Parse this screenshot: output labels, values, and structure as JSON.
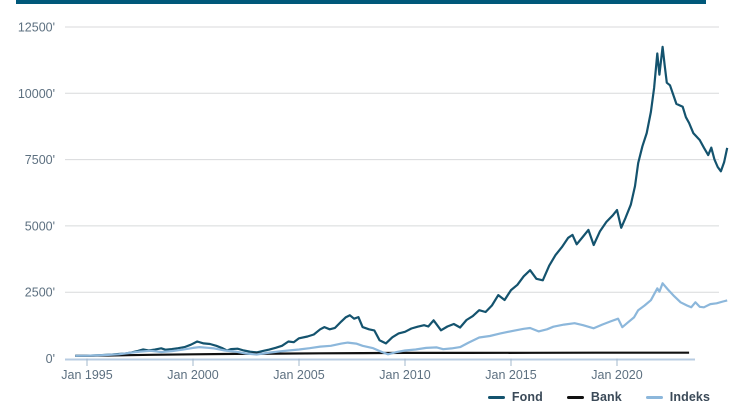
{
  "page": {
    "accent_bar_color": "#00587a",
    "background_color": "#ffffff"
  },
  "chart_data": {
    "type": "line",
    "title": "",
    "xlabel": "",
    "ylabel": "",
    "grid": true,
    "legend_position": "bottom-right",
    "y_tick_suffix": "'",
    "x_axis": {
      "tick_labels": [
        "Jan 1995",
        "Jan 2000",
        "Jan 2005",
        "Jan 2010",
        "Jan 2015",
        "Jan 2020"
      ],
      "tick_years": [
        1995,
        2000,
        2005,
        2010,
        2015,
        2020
      ],
      "range_years": [
        1994.4,
        2025.3
      ]
    },
    "y_axis": {
      "tick_labels": [
        "0'",
        "2500'",
        "5000'",
        "7500'",
        "10000'",
        "12500'"
      ],
      "tick_values": [
        0,
        2500,
        5000,
        7500,
        10000,
        12500
      ],
      "range": [
        0,
        12500
      ]
    },
    "style": {
      "grid_color": "#d8dadb",
      "axis_line_color": "#b8cce2",
      "tick_color": "#a3b8cc",
      "axis_label_color": "#5d7080",
      "legend_text_color": "#3b4a58"
    },
    "series": [
      {
        "name": "Fond",
        "color": "#14536e",
        "end_year": 2025.2,
        "points": [
          [
            1994.45,
            100
          ],
          [
            1994.7,
            100
          ],
          [
            1995.0,
            105
          ],
          [
            1995.3,
            112
          ],
          [
            1995.6,
            125
          ],
          [
            1995.9,
            138
          ],
          [
            1996.2,
            150
          ],
          [
            1996.5,
            168
          ],
          [
            1996.8,
            185
          ],
          [
            1997.1,
            230
          ],
          [
            1997.4,
            285
          ],
          [
            1997.65,
            340
          ],
          [
            1997.9,
            300
          ],
          [
            1998.2,
            335
          ],
          [
            1998.5,
            385
          ],
          [
            1998.7,
            330
          ],
          [
            1999.0,
            355
          ],
          [
            1999.3,
            390
          ],
          [
            1999.6,
            430
          ],
          [
            1999.9,
            520
          ],
          [
            2000.2,
            640
          ],
          [
            2000.5,
            570
          ],
          [
            2000.8,
            545
          ],
          [
            2001.1,
            480
          ],
          [
            2001.4,
            385
          ],
          [
            2001.6,
            300
          ],
          [
            2001.8,
            355
          ],
          [
            2002.1,
            370
          ],
          [
            2002.4,
            300
          ],
          [
            2002.7,
            255
          ],
          [
            2003.0,
            230
          ],
          [
            2003.3,
            285
          ],
          [
            2003.6,
            335
          ],
          [
            2003.9,
            405
          ],
          [
            2004.2,
            480
          ],
          [
            2004.5,
            640
          ],
          [
            2004.75,
            615
          ],
          [
            2005.0,
            760
          ],
          [
            2005.4,
            830
          ],
          [
            2005.7,
            905
          ],
          [
            2006.0,
            1100
          ],
          [
            2006.2,
            1185
          ],
          [
            2006.45,
            1100
          ],
          [
            2006.7,
            1155
          ],
          [
            2007.0,
            1400
          ],
          [
            2007.2,
            1550
          ],
          [
            2007.4,
            1630
          ],
          [
            2007.6,
            1500
          ],
          [
            2007.8,
            1560
          ],
          [
            2008.0,
            1185
          ],
          [
            2008.3,
            1100
          ],
          [
            2008.55,
            1060
          ],
          [
            2008.8,
            685
          ],
          [
            2009.1,
            570
          ],
          [
            2009.4,
            800
          ],
          [
            2009.7,
            945
          ],
          [
            2010.0,
            1005
          ],
          [
            2010.3,
            1130
          ],
          [
            2010.6,
            1200
          ],
          [
            2010.9,
            1255
          ],
          [
            2011.1,
            1205
          ],
          [
            2011.35,
            1440
          ],
          [
            2011.7,
            1065
          ],
          [
            2012.0,
            1205
          ],
          [
            2012.3,
            1300
          ],
          [
            2012.6,
            1170
          ],
          [
            2012.9,
            1450
          ],
          [
            2013.2,
            1600
          ],
          [
            2013.5,
            1820
          ],
          [
            2013.8,
            1755
          ],
          [
            2014.1,
            2000
          ],
          [
            2014.4,
            2390
          ],
          [
            2014.7,
            2205
          ],
          [
            2015.0,
            2580
          ],
          [
            2015.3,
            2780
          ],
          [
            2015.6,
            3100
          ],
          [
            2015.9,
            3330
          ],
          [
            2016.2,
            3005
          ],
          [
            2016.5,
            2950
          ],
          [
            2016.8,
            3500
          ],
          [
            2017.1,
            3900
          ],
          [
            2017.4,
            4200
          ],
          [
            2017.7,
            4550
          ],
          [
            2017.9,
            4660
          ],
          [
            2018.1,
            4305
          ],
          [
            2018.4,
            4600
          ],
          [
            2018.65,
            4850
          ],
          [
            2018.9,
            4280
          ],
          [
            2019.2,
            4800
          ],
          [
            2019.5,
            5150
          ],
          [
            2019.8,
            5400
          ],
          [
            2020.0,
            5600
          ],
          [
            2020.2,
            4930
          ],
          [
            2020.4,
            5300
          ],
          [
            2020.65,
            5800
          ],
          [
            2020.85,
            6500
          ],
          [
            2021.0,
            7370
          ],
          [
            2021.2,
            8000
          ],
          [
            2021.4,
            8500
          ],
          [
            2021.6,
            9300
          ],
          [
            2021.75,
            10200
          ],
          [
            2021.9,
            11500
          ],
          [
            2022.0,
            10700
          ],
          [
            2022.15,
            11750
          ],
          [
            2022.25,
            11050
          ],
          [
            2022.35,
            10400
          ],
          [
            2022.5,
            10300
          ],
          [
            2022.65,
            9950
          ],
          [
            2022.8,
            9600
          ],
          [
            2023.1,
            9490
          ],
          [
            2023.25,
            9100
          ],
          [
            2023.4,
            8880
          ],
          [
            2023.6,
            8500
          ],
          [
            2023.9,
            8240
          ],
          [
            2024.1,
            7950
          ],
          [
            2024.3,
            7670
          ],
          [
            2024.45,
            7950
          ],
          [
            2024.6,
            7500
          ],
          [
            2024.75,
            7220
          ],
          [
            2024.9,
            7060
          ],
          [
            2025.05,
            7400
          ],
          [
            2025.2,
            7940
          ]
        ]
      },
      {
        "name": "Bank",
        "color": "#111111",
        "end_year": 2023.4,
        "points": [
          [
            1994.45,
            100
          ],
          [
            1996.0,
            115
          ],
          [
            1998.0,
            140
          ],
          [
            2000.0,
            160
          ],
          [
            2002.0,
            175
          ],
          [
            2004.0,
            185
          ],
          [
            2006.0,
            195
          ],
          [
            2008.0,
            205
          ],
          [
            2010.0,
            210
          ],
          [
            2013.0,
            213
          ],
          [
            2016.0,
            215
          ],
          [
            2019.0,
            217
          ],
          [
            2021.0,
            218
          ],
          [
            2023.4,
            220
          ]
        ]
      },
      {
        "name": "Indeks",
        "color": "#8cb7db",
        "end_year": 2025.2,
        "points": [
          [
            1994.45,
            100
          ],
          [
            1995.0,
            105
          ],
          [
            1995.5,
            118
          ],
          [
            1996.0,
            135
          ],
          [
            1996.5,
            160
          ],
          [
            1997.0,
            210
          ],
          [
            1997.5,
            260
          ],
          [
            1998.0,
            290
          ],
          [
            1998.5,
            245
          ],
          [
            1999.0,
            280
          ],
          [
            1999.5,
            330
          ],
          [
            2000.0,
            400
          ],
          [
            2000.3,
            430
          ],
          [
            2000.7,
            405
          ],
          [
            2001.0,
            380
          ],
          [
            2001.5,
            300
          ],
          [
            2002.0,
            260
          ],
          [
            2002.5,
            190
          ],
          [
            2003.0,
            150
          ],
          [
            2003.5,
            210
          ],
          [
            2004.0,
            260
          ],
          [
            2004.5,
            300
          ],
          [
            2005.0,
            340
          ],
          [
            2005.5,
            390
          ],
          [
            2006.0,
            450
          ],
          [
            2006.5,
            480
          ],
          [
            2007.0,
            560
          ],
          [
            2007.3,
            600
          ],
          [
            2007.7,
            560
          ],
          [
            2008.0,
            480
          ],
          [
            2008.5,
            390
          ],
          [
            2008.9,
            250
          ],
          [
            2009.2,
            160
          ],
          [
            2009.6,
            240
          ],
          [
            2010.0,
            300
          ],
          [
            2010.5,
            340
          ],
          [
            2011.0,
            400
          ],
          [
            2011.5,
            420
          ],
          [
            2011.8,
            350
          ],
          [
            2012.2,
            380
          ],
          [
            2012.6,
            430
          ],
          [
            2013.0,
            600
          ],
          [
            2013.5,
            790
          ],
          [
            2014.0,
            850
          ],
          [
            2014.5,
            945
          ],
          [
            2015.2,
            1060
          ],
          [
            2015.6,
            1120
          ],
          [
            2015.9,
            1150
          ],
          [
            2016.3,
            1020
          ],
          [
            2016.7,
            1100
          ],
          [
            2017.0,
            1200
          ],
          [
            2017.5,
            1280
          ],
          [
            2018.0,
            1330
          ],
          [
            2018.4,
            1255
          ],
          [
            2018.9,
            1140
          ],
          [
            2019.3,
            1280
          ],
          [
            2019.7,
            1400
          ],
          [
            2020.05,
            1500
          ],
          [
            2020.25,
            1180
          ],
          [
            2020.5,
            1350
          ],
          [
            2020.8,
            1550
          ],
          [
            2021.0,
            1820
          ],
          [
            2021.3,
            2000
          ],
          [
            2021.6,
            2200
          ],
          [
            2021.9,
            2645
          ],
          [
            2022.0,
            2520
          ],
          [
            2022.15,
            2835
          ],
          [
            2022.4,
            2600
          ],
          [
            2022.7,
            2350
          ],
          [
            2023.0,
            2120
          ],
          [
            2023.3,
            2000
          ],
          [
            2023.5,
            1930
          ],
          [
            2023.7,
            2120
          ],
          [
            2023.9,
            1950
          ],
          [
            2024.1,
            1930
          ],
          [
            2024.4,
            2050
          ],
          [
            2024.7,
            2080
          ],
          [
            2025.0,
            2150
          ],
          [
            2025.2,
            2190
          ]
        ]
      }
    ]
  }
}
